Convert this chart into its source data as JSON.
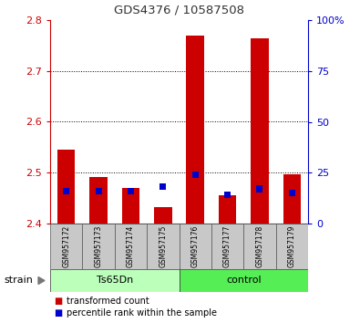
{
  "title": "GDS4376 / 10587508",
  "samples": [
    "GSM957172",
    "GSM957173",
    "GSM957174",
    "GSM957175",
    "GSM957176",
    "GSM957177",
    "GSM957178",
    "GSM957179"
  ],
  "red_values": [
    2.545,
    2.492,
    2.47,
    2.433,
    2.77,
    2.455,
    2.765,
    2.497
  ],
  "percentile_values": [
    16,
    16,
    16,
    18,
    24,
    14,
    17,
    15
  ],
  "y_min": 2.4,
  "y_max": 2.8,
  "y_ticks": [
    2.4,
    2.5,
    2.6,
    2.7,
    2.8
  ],
  "right_y_ticks": [
    0,
    25,
    50,
    75,
    100
  ],
  "right_y_labels": [
    "0",
    "25",
    "50",
    "75",
    "100%"
  ],
  "groups": [
    {
      "label": "Ts65Dn",
      "start": 0,
      "end": 4,
      "color": "#bbffbb"
    },
    {
      "label": "control",
      "start": 4,
      "end": 8,
      "color": "#55ee55"
    }
  ],
  "group_label": "strain",
  "bar_width": 0.55,
  "blue_bar_width": 0.2,
  "red_color": "#cc0000",
  "blue_color": "#0000cc",
  "bg_color": "#c8c8c8",
  "plot_bg": "#ffffff",
  "title_color": "#333333",
  "left_axis_color": "#cc0000",
  "right_axis_color": "#0000cc",
  "grid_color": "#000000",
  "legend_red": "transformed count",
  "legend_blue": "percentile rank within the sample"
}
